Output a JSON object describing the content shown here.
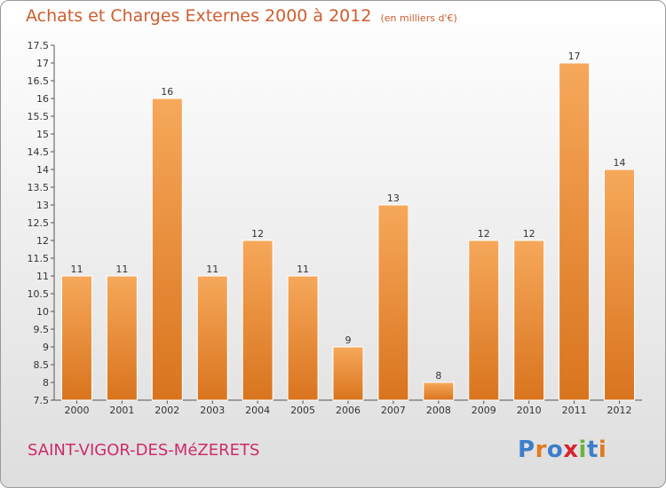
{
  "header": {
    "title": "Achats et Charges Externes 2000 à 2012",
    "unit": "(en milliers d'€)"
  },
  "footer": {
    "place": "SAINT-VIGOR-DES-MéZERETS",
    "logo_text": "Proxiti"
  },
  "colors": {
    "bar_light": "#f6a85a",
    "bar_dark": "#d9741e",
    "title": "#ce5d2e",
    "place": "#cc2b6b"
  },
  "chart_data": {
    "type": "bar",
    "title": "Achats et Charges Externes 2000 à 2012",
    "ylabel": "(en milliers d'€)",
    "categories": [
      "2000",
      "2001",
      "2002",
      "2003",
      "2004",
      "2005",
      "2006",
      "2007",
      "2008",
      "2009",
      "2010",
      "2011",
      "2012"
    ],
    "values": [
      11,
      11,
      16,
      11,
      12,
      11,
      9,
      13,
      8,
      12,
      12,
      17,
      14
    ],
    "ylim": [
      7.5,
      17.5
    ],
    "yticks": [
      "7.5",
      "8",
      "8.5",
      "9",
      "9.5",
      "10",
      "10.5",
      "11",
      "11.5",
      "12",
      "12.5",
      "13",
      "13.5",
      "14",
      "14.5",
      "15",
      "15.5",
      "16",
      "16.5",
      "17",
      "17.5"
    ],
    "grid": false,
    "legend": "none"
  }
}
